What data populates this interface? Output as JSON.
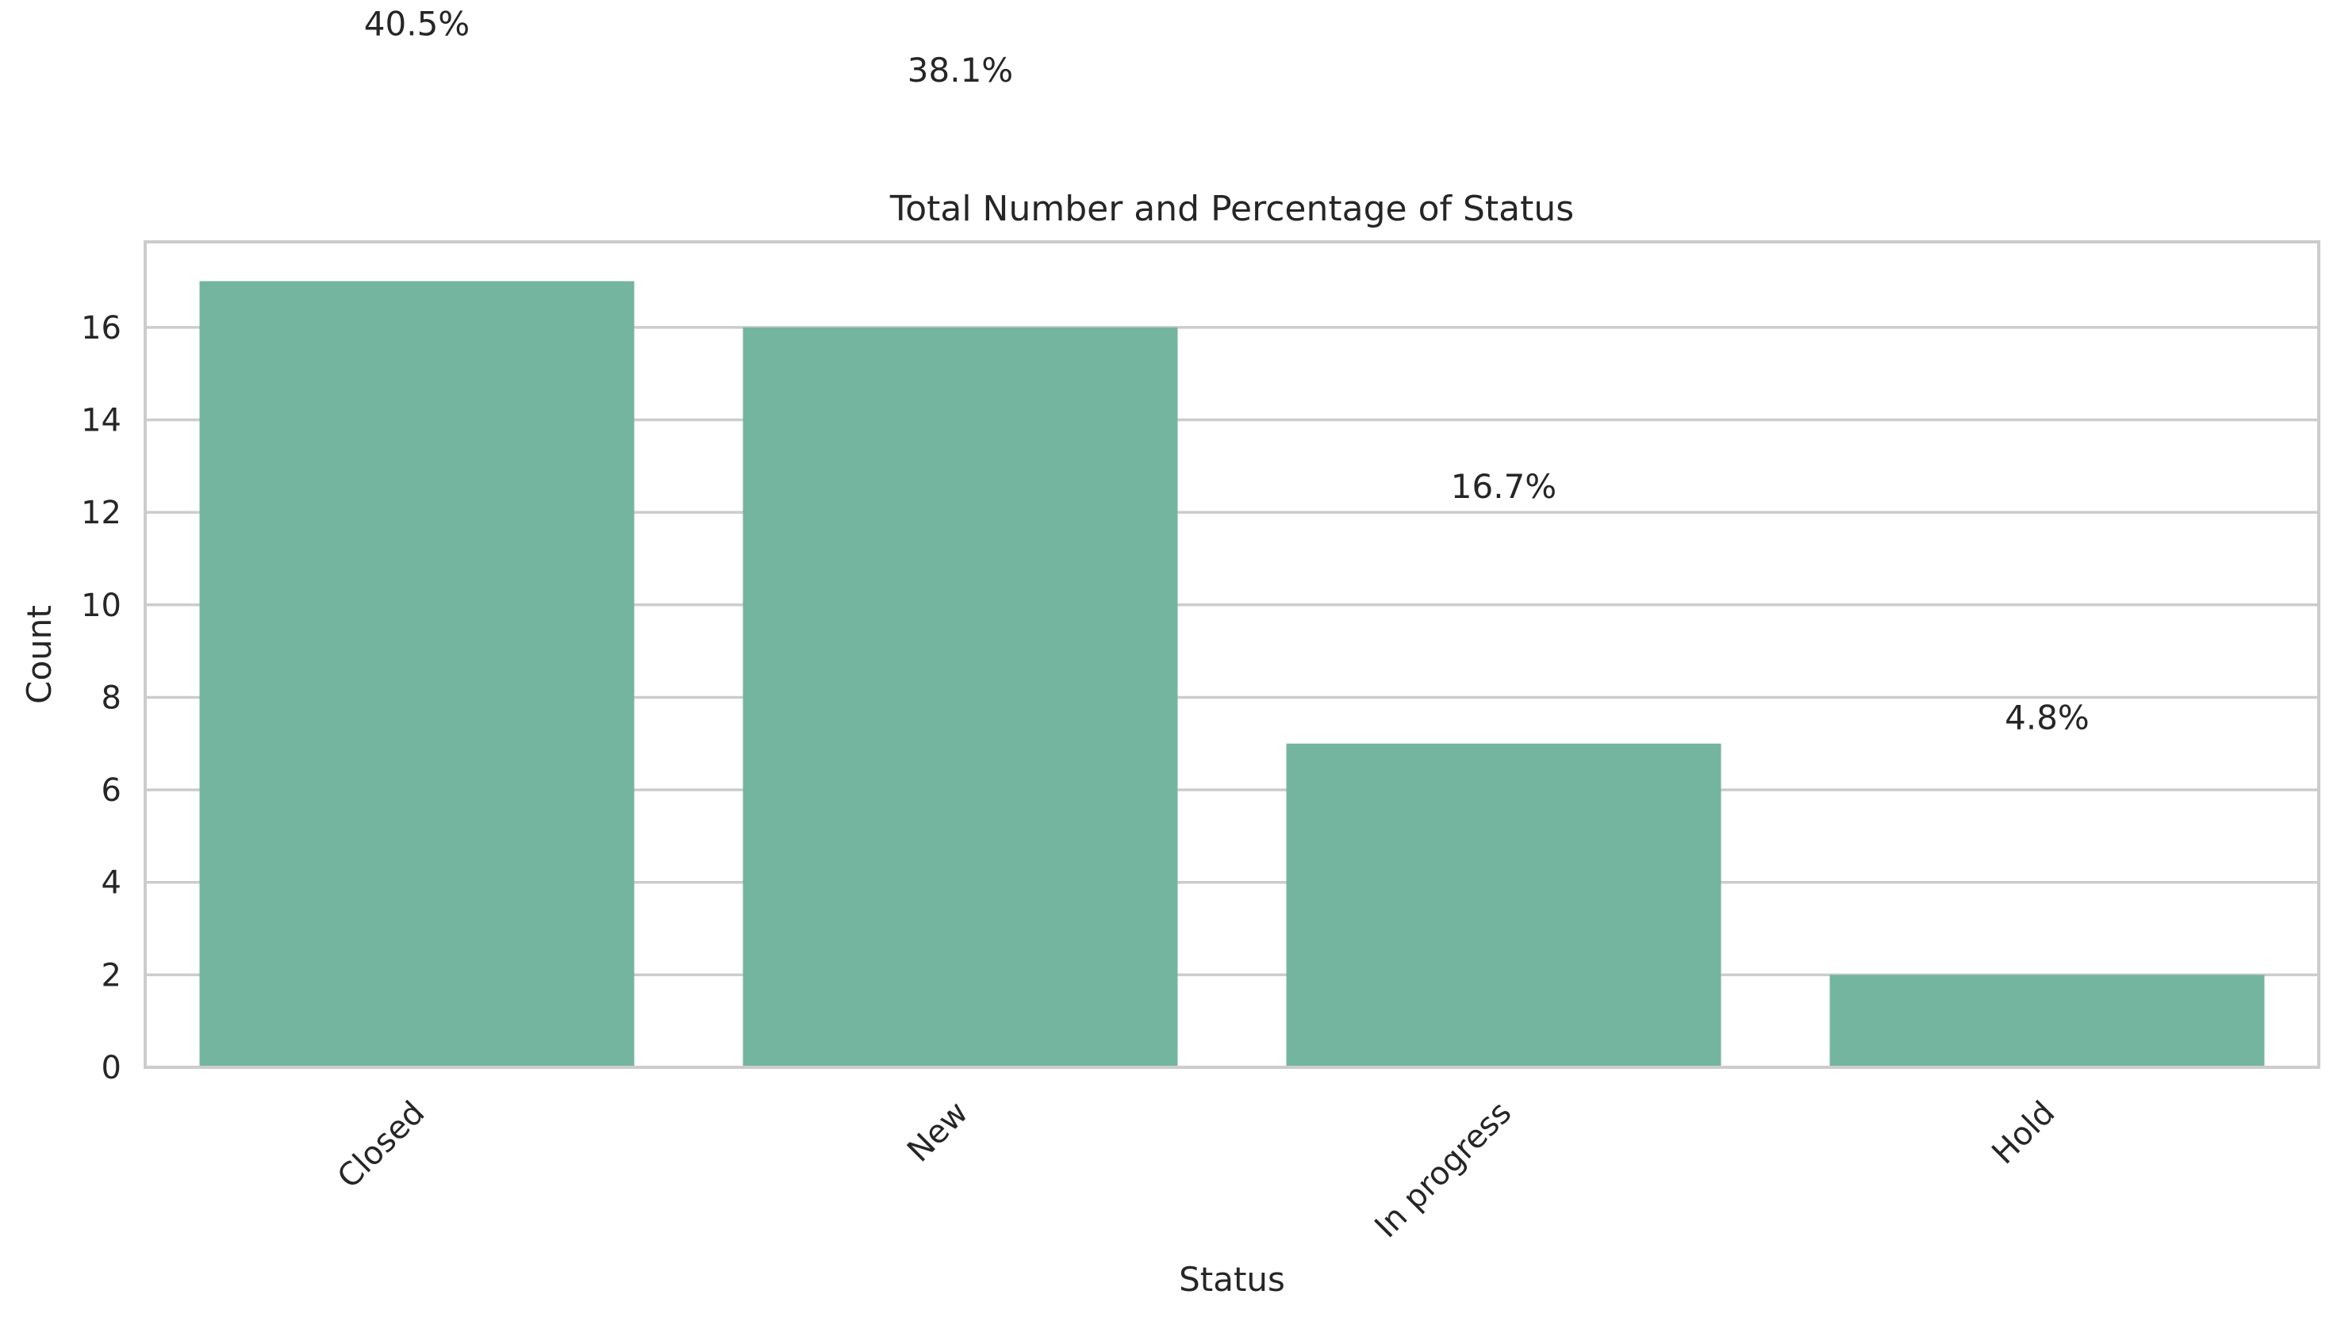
{
  "chart_data": {
    "type": "bar",
    "title": "Total Number and Percentage of Status",
    "xlabel": "Status",
    "ylabel": "Count",
    "categories": [
      "Closed",
      "New",
      "In progress",
      "Hold"
    ],
    "values": [
      17,
      16,
      7,
      2
    ],
    "percent_labels": [
      "40.5%",
      "38.1%",
      "16.7%",
      "4.8%"
    ],
    "yticks": [
      0,
      2,
      4,
      6,
      8,
      10,
      12,
      14,
      16
    ],
    "ylim": [
      0,
      17.85
    ],
    "grid": true,
    "bar_color": "#74b59f",
    "grid_color": "#cccccc"
  }
}
